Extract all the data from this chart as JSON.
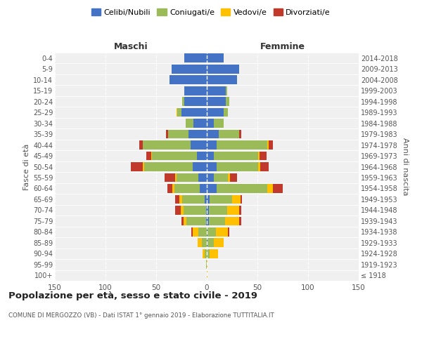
{
  "age_groups": [
    "100+",
    "95-99",
    "90-94",
    "85-89",
    "80-84",
    "75-79",
    "70-74",
    "65-69",
    "60-64",
    "55-59",
    "50-54",
    "45-49",
    "40-44",
    "35-39",
    "30-34",
    "25-29",
    "20-24",
    "15-19",
    "10-14",
    "5-9",
    "0-4"
  ],
  "birth_years": [
    "≤ 1918",
    "1919-1923",
    "1924-1928",
    "1929-1933",
    "1934-1938",
    "1939-1943",
    "1944-1948",
    "1949-1953",
    "1954-1958",
    "1959-1963",
    "1964-1968",
    "1969-1973",
    "1974-1978",
    "1979-1983",
    "1984-1988",
    "1989-1993",
    "1994-1998",
    "1999-2003",
    "2004-2008",
    "2009-2013",
    "2014-2018"
  ],
  "male_celibe": [
    0,
    0,
    0,
    0,
    0,
    1,
    1,
    2,
    7,
    8,
    14,
    10,
    16,
    18,
    13,
    25,
    22,
    22,
    37,
    35,
    22
  ],
  "male_coniugato": [
    0,
    1,
    2,
    5,
    8,
    19,
    22,
    22,
    25,
    22,
    48,
    44,
    47,
    20,
    8,
    4,
    2,
    0,
    0,
    0,
    0
  ],
  "male_vedovo": [
    0,
    0,
    2,
    4,
    6,
    3,
    3,
    3,
    2,
    1,
    1,
    1,
    0,
    0,
    0,
    1,
    0,
    0,
    0,
    0,
    0
  ],
  "male_divorziato": [
    0,
    0,
    0,
    0,
    1,
    2,
    5,
    4,
    5,
    11,
    12,
    5,
    4,
    2,
    0,
    0,
    0,
    0,
    0,
    0,
    0
  ],
  "female_celibe": [
    0,
    0,
    0,
    1,
    1,
    2,
    2,
    3,
    10,
    7,
    10,
    7,
    10,
    12,
    7,
    17,
    19,
    19,
    30,
    32,
    17
  ],
  "female_coniugato": [
    0,
    0,
    3,
    6,
    8,
    16,
    18,
    22,
    50,
    14,
    41,
    44,
    50,
    20,
    10,
    4,
    3,
    1,
    0,
    0,
    0
  ],
  "female_vedovo": [
    1,
    1,
    8,
    10,
    12,
    14,
    12,
    8,
    5,
    2,
    2,
    1,
    1,
    0,
    0,
    0,
    0,
    0,
    0,
    0,
    0
  ],
  "female_divorziato": [
    0,
    0,
    0,
    0,
    1,
    2,
    2,
    2,
    10,
    7,
    8,
    7,
    4,
    2,
    0,
    0,
    0,
    0,
    0,
    0,
    0
  ],
  "color_celibe": "#4472c4",
  "color_coniugato": "#9bbb59",
  "color_vedovo": "#ffc000",
  "color_divorziato": "#c0392b",
  "title": "Popolazione per età, sesso e stato civile - 2019",
  "subtitle": "COMUNE DI MERGOZZO (VB) - Dati ISTAT 1° gennaio 2019 - Elaborazione TUTTITALIA.IT",
  "ylabel_left": "Fasce di età",
  "ylabel_right": "Anni di nascita",
  "xlabel_left": "Maschi",
  "xlabel_right": "Femmine",
  "xlim": 150,
  "legend_labels": [
    "Celibi/Nubili",
    "Coniugati/e",
    "Vedovi/e",
    "Divorziati/e"
  ],
  "background_color": "#ffffff",
  "plot_bg_color": "#f0f0f0",
  "grid_color": "#cccccc"
}
